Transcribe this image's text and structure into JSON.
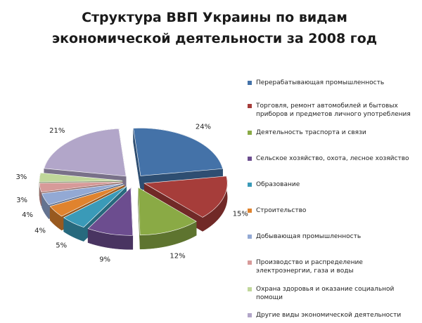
{
  "chart_data": {
    "type": "pie",
    "title": "Структура ВВП Украины по видам экономической деятельности за 2008 год",
    "title_lines": [
      "Структура ВВП Украины по видам",
      "экономической деятельности за 2008 год"
    ],
    "style": "exploded-3d",
    "legend_position": "right",
    "slices": [
      {
        "label": "Перерабатывающая промышленность",
        "value": 24,
        "value_label": "24%",
        "color": "#4472a8"
      },
      {
        "label": "Торговля, ремонт автомобилей и бытовых приборов и предметов личного употребления",
        "value": 15,
        "value_label": "15%",
        "color": "#a63d3a"
      },
      {
        "label": "Деятельность траспорта и связи",
        "value": 12,
        "value_label": "12%",
        "color": "#8aaa45"
      },
      {
        "label": "Сельское хозяйство, охота, лесное хозяйство",
        "value": 9,
        "value_label": "9%",
        "color": "#6c4d8f"
      },
      {
        "label": "Образование",
        "value": 5,
        "value_label": "5%",
        "color": "#3a9ab8"
      },
      {
        "label": "Строительство",
        "value": 4,
        "value_label": "4%",
        "color": "#e0832e"
      },
      {
        "label": "Добывающая промышленность",
        "value": 4,
        "value_label": "4%",
        "color": "#93a9d4"
      },
      {
        "label": "Производство и распределение электроэнергии, газа и воды",
        "value": 3,
        "value_label": "3%",
        "color": "#d79a99"
      },
      {
        "label": "Охрана здоровья и оказание социальной помощи",
        "value": 3,
        "value_label": "3%",
        "color": "#c0d79a"
      },
      {
        "label": "Другие виды экономической деятельности",
        "value": 21,
        "value_label": "21%",
        "color": "#b2a6c9"
      }
    ]
  }
}
